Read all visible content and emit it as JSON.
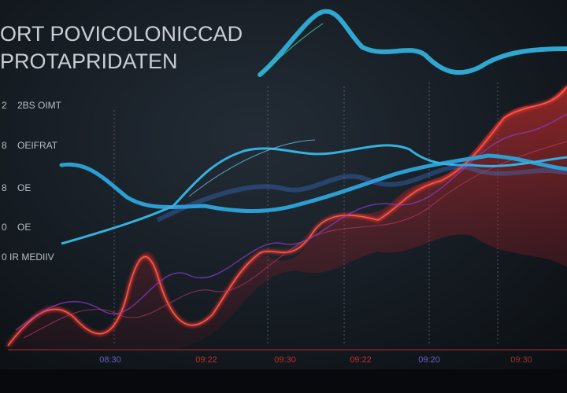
{
  "header": {
    "title": "ORT POVICOLONICCAD",
    "subtitle": "PROTAPRIDATEN"
  },
  "side_labels": [
    {
      "mark": "2",
      "text": "2BS OIMT"
    },
    {
      "mark": "8",
      "text": "OEIFRAT"
    },
    {
      "mark": "8",
      "text": "OE"
    },
    {
      "mark": "0",
      "text": "OE"
    },
    {
      "mark": "0",
      "text": "IR MEDIIV"
    }
  ],
  "time_labels": [
    "08:30",
    "09:22",
    "09:30",
    "09:22",
    "09:20",
    "09:30"
  ]
}
